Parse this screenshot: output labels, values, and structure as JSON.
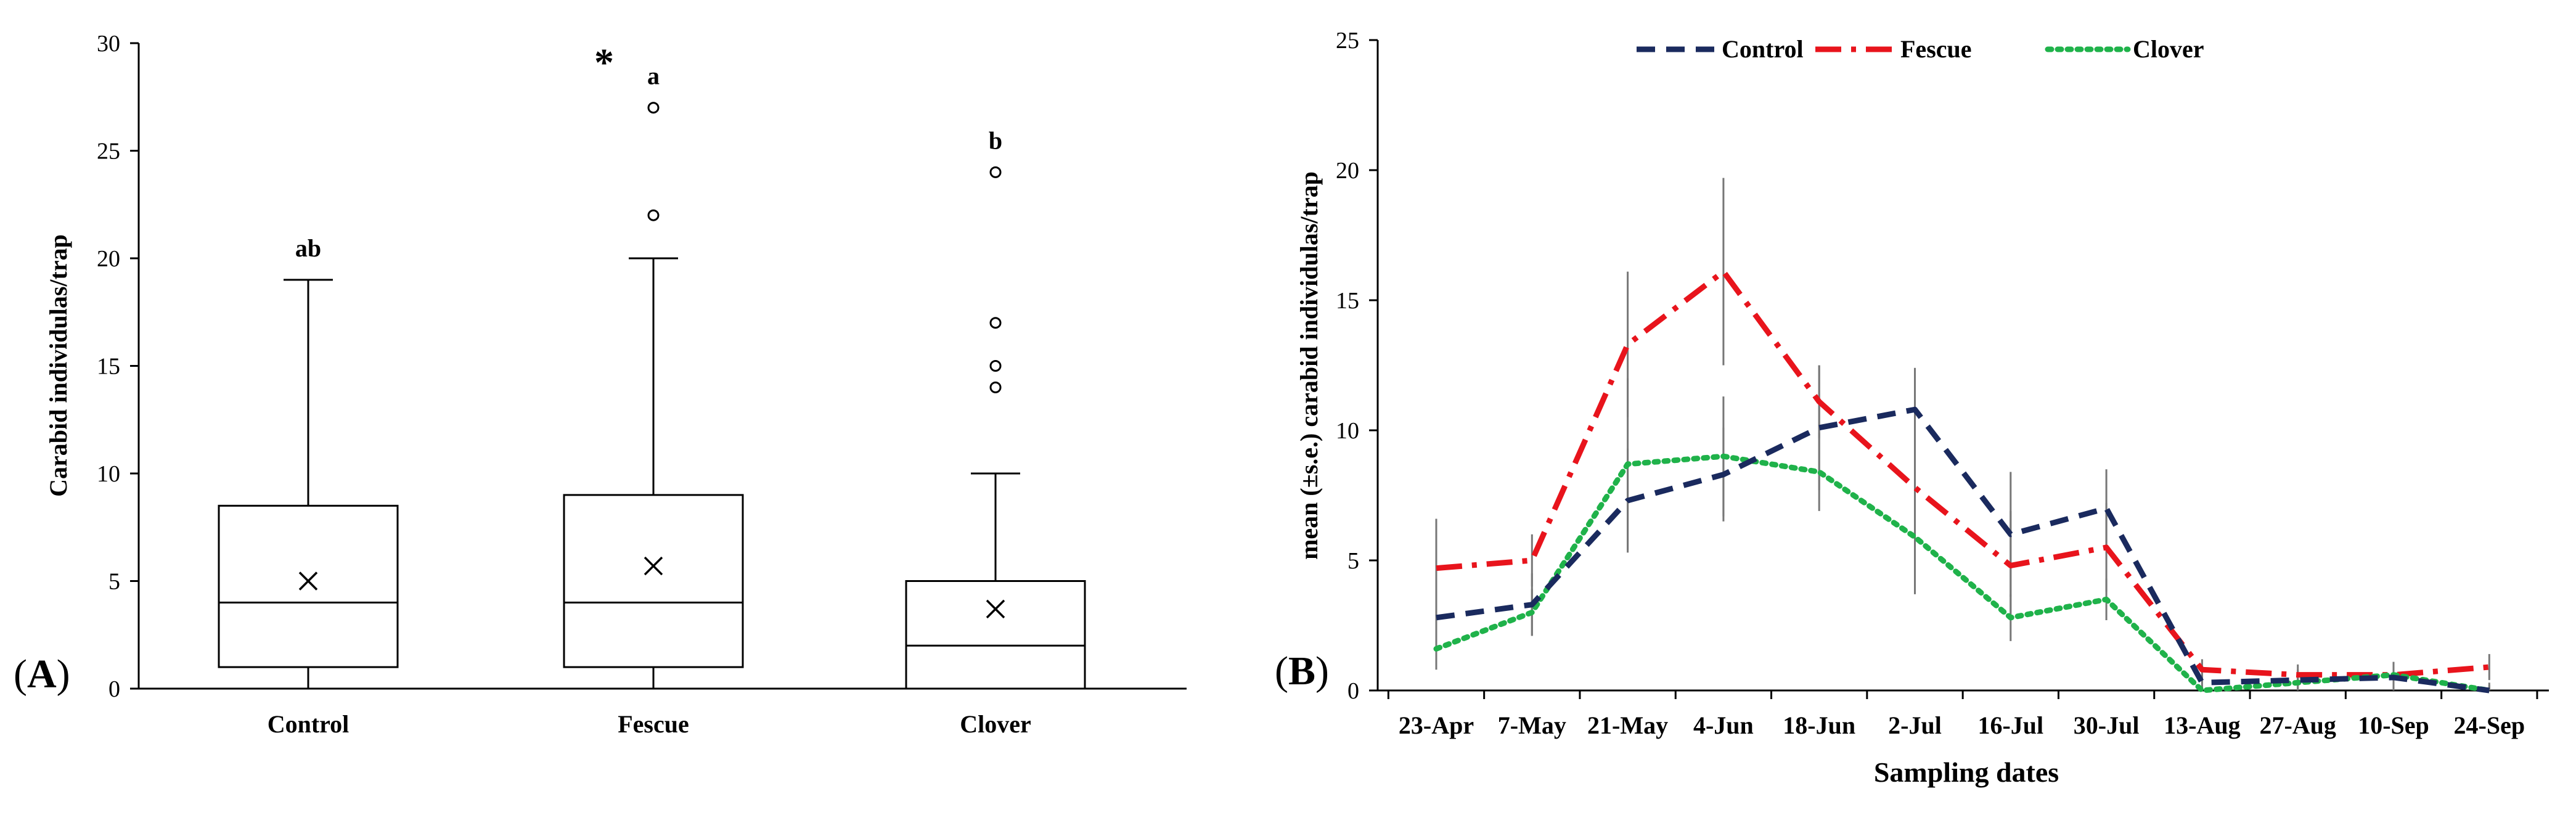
{
  "panel_labels": {
    "A": {
      "open": "(",
      "letter": "A",
      "close": ")"
    },
    "B": {
      "open": "(",
      "letter": "B",
      "close": ")"
    }
  },
  "chart_data": [
    {
      "type": "box",
      "ylabel": "Carabid individulas/trap",
      "ylim": [
        0,
        30
      ],
      "yticks": [
        0,
        5,
        10,
        15,
        20,
        25,
        30
      ],
      "categories": [
        "Control",
        "Fescue",
        "Clover"
      ],
      "boxes": [
        {
          "name": "Control",
          "whisker_low": 0,
          "q1": 1,
          "median": 4,
          "q3": 8.5,
          "whisker_high": 19,
          "mean": 5,
          "outliers": [],
          "letter": "ab"
        },
        {
          "name": "Fescue",
          "whisker_low": 0,
          "q1": 1,
          "median": 4,
          "q3": 9,
          "whisker_high": 20,
          "mean": 5.7,
          "outliers": [
            22,
            27
          ],
          "letter": "a",
          "marker": "*"
        },
        {
          "name": "Clover",
          "whisker_low": 0,
          "q1": 0,
          "median": 2,
          "q3": 5,
          "whisker_high": 10,
          "mean": 3.7,
          "outliers": [
            14,
            15,
            17,
            24
          ],
          "letter": "b"
        }
      ]
    },
    {
      "type": "line",
      "title": "",
      "xlabel": "Sampling dates",
      "ylabel": "mean (±s.e.) carabid individulas/trap",
      "ylim": [
        0,
        25
      ],
      "yticks": [
        0,
        5,
        10,
        15,
        20,
        25
      ],
      "categories": [
        "23-Apr",
        "7-May",
        "21-May",
        "4-Jun",
        "18-Jun",
        "2-Jul",
        "16-Jul",
        "30-Jul",
        "13-Aug",
        "27-Aug",
        "10-Sep",
        "24-Sep"
      ],
      "series": [
        {
          "name": "Control",
          "color": "#1a2a5e",
          "dash": "dash",
          "values": [
            2.8,
            3.3,
            7.3,
            8.3,
            10.1,
            10.8,
            6.0,
            7.0,
            0.3,
            0.4,
            0.5,
            0.0
          ],
          "se": [
            1.5,
            1.2,
            2.0,
            1.8,
            2.4,
            1.6,
            2.4,
            1.5,
            0.3,
            0.4,
            0.5,
            0.3
          ]
        },
        {
          "name": "Fescue",
          "color": "#e8141c",
          "dash": "dashdot",
          "values": [
            4.7,
            5.0,
            13.3,
            16.1,
            11.1,
            7.8,
            4.8,
            5.5,
            0.8,
            0.6,
            0.6,
            0.9
          ],
          "se": [
            1.9,
            1.0,
            2.8,
            3.6,
            1.4,
            1.5,
            2.1,
            1.7,
            0.4,
            0.4,
            0.5,
            0.5
          ]
        },
        {
          "name": "Clover",
          "color": "#1fb24a",
          "dash": "dot",
          "values": [
            1.6,
            3.0,
            8.7,
            9.0,
            8.4,
            5.9,
            2.8,
            3.5,
            0.0,
            0.3,
            0.6,
            0.0
          ],
          "se": [
            0.8,
            0.9,
            3.3,
            2.3,
            1.5,
            2.2,
            0.9,
            0.8,
            0.2,
            0.3,
            0.4,
            0.2
          ]
        }
      ],
      "legend_position": "top-center"
    }
  ]
}
